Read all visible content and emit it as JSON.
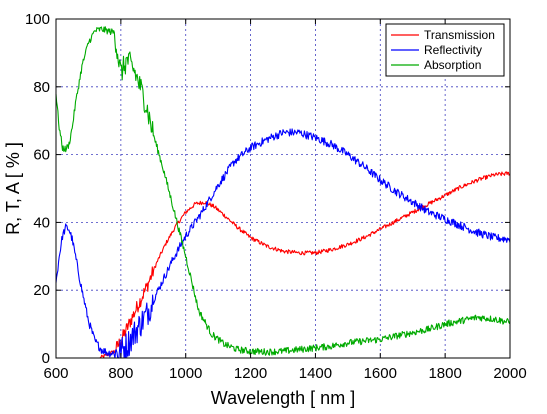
{
  "chart_data": {
    "type": "line",
    "xlabel": "Wavelength [ nm ]",
    "ylabel": "R, T, A [ % ]",
    "xlim": [
      600,
      2000
    ],
    "ylim": [
      0,
      100
    ],
    "xticks": [
      600,
      800,
      1000,
      1200,
      1400,
      1600,
      1800,
      2000
    ],
    "yticks": [
      0,
      20,
      40,
      60,
      80,
      100
    ],
    "grid": true,
    "legend_position": "top-right",
    "series": [
      {
        "name": "Transmission",
        "color": "#ff0000",
        "noise": 0.6,
        "x": [
          735,
          760,
          780,
          800,
          820,
          850,
          880,
          910,
          940,
          970,
          1000,
          1030,
          1060,
          1090,
          1120,
          1160,
          1200,
          1250,
          1300,
          1350,
          1400,
          1450,
          1500,
          1550,
          1600,
          1650,
          1700,
          1750,
          1800,
          1850,
          1900,
          1950,
          2000
        ],
        "y": [
          0,
          1,
          2,
          5,
          9,
          15,
          21,
          28,
          34,
          39,
          43,
          45.5,
          46,
          44.5,
          42,
          38.5,
          35.5,
          33,
          31.5,
          31,
          31,
          32,
          33.5,
          35.5,
          38,
          40.5,
          43,
          45.5,
          48,
          50.5,
          52.5,
          54,
          54.5
        ]
      },
      {
        "name": "Reflectivity",
        "color": "#0000ff",
        "noise": 1.2,
        "x": [
          600,
          610,
          620,
          630,
          640,
          650,
          660,
          680,
          700,
          720,
          740,
          760,
          780,
          800,
          820,
          840,
          860,
          880,
          900,
          930,
          960,
          1000,
          1050,
          1100,
          1150,
          1200,
          1250,
          1300,
          1350,
          1400,
          1450,
          1500,
          1550,
          1600,
          1650,
          1700,
          1750,
          1800,
          1850,
          1900,
          1950,
          2000
        ],
        "y": [
          22,
          30,
          36,
          38.5,
          38,
          35,
          30,
          20,
          11,
          5,
          2.5,
          1.5,
          1.5,
          2,
          4,
          7,
          10,
          13,
          17,
          23,
          29,
          36,
          43,
          51,
          58,
          62,
          64.5,
          66.5,
          66.5,
          65,
          63,
          60,
          56.5,
          52.5,
          49,
          46,
          43,
          41,
          39,
          37,
          35.5,
          35
        ]
      },
      {
        "name": "Absorption",
        "color": "#00aa00",
        "noise": 1.0,
        "x": [
          600,
          610,
          620,
          630,
          640,
          650,
          660,
          680,
          700,
          720,
          740,
          760,
          780,
          800,
          820,
          840,
          860,
          880,
          900,
          930,
          960,
          1000,
          1040,
          1080,
          1120,
          1160,
          1200,
          1250,
          1300,
          1350,
          1400,
          1450,
          1500,
          1550,
          1600,
          1650,
          1700,
          1750,
          1800,
          1850,
          1900,
          1950,
          2000
        ],
        "y": [
          78,
          68,
          62,
          61.5,
          63,
          68,
          75,
          86,
          93,
          96.5,
          97,
          96.5,
          96,
          84,
          88,
          85,
          80,
          74,
          66,
          56,
          45,
          30,
          14,
          7,
          4,
          2.5,
          2,
          1.8,
          2,
          2.5,
          3,
          3.5,
          4.5,
          5,
          5.5,
          6.5,
          7.5,
          8.5,
          10,
          11,
          12,
          11.5,
          10.5
        ]
      }
    ]
  }
}
